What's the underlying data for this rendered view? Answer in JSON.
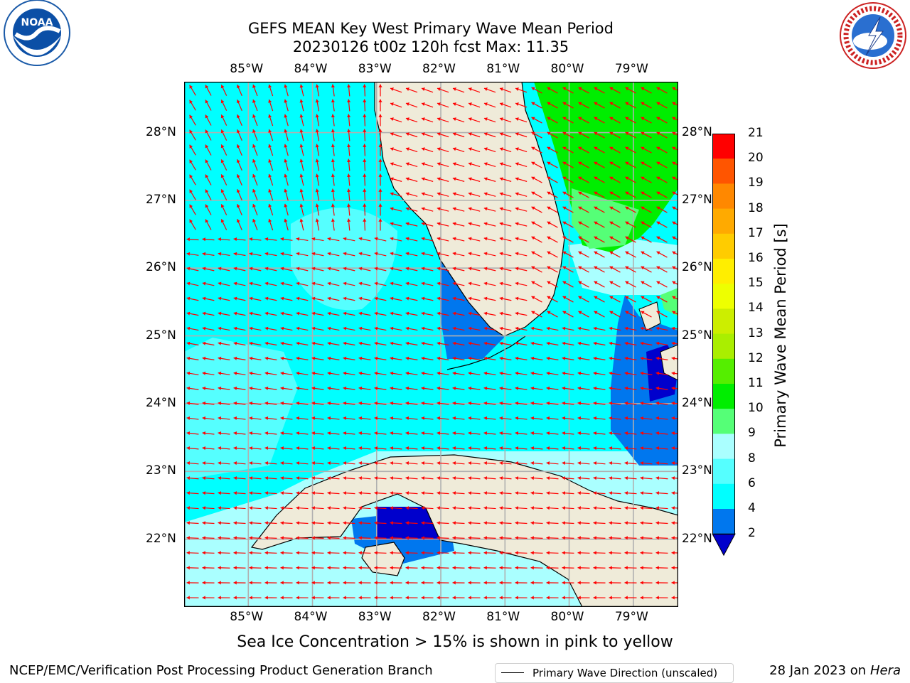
{
  "title": {
    "line1": "GEFS MEAN Key West Primary Wave Mean Period",
    "line2": "20230126 t00z 120h fcst   Max: 11.35"
  },
  "map": {
    "lon_labels": [
      "85°W",
      "84°W",
      "83°W",
      "82°W",
      "81°W",
      "80°W",
      "79°W"
    ],
    "lat_labels": [
      "28°N",
      "27°N",
      "26°N",
      "25°N",
      "24°N",
      "23°N",
      "22°N"
    ],
    "lon_range": [
      -86.0,
      -78.3
    ],
    "lat_range": [
      21.0,
      28.75
    ],
    "land_color": "#efebd9",
    "grid": true,
    "vector_color": "#ff0000"
  },
  "colorbar": {
    "title": "Primary Wave Mean Period [s]",
    "levels": [
      "2",
      "4",
      "6",
      "8",
      "9",
      "10",
      "11",
      "12",
      "13",
      "14",
      "15",
      "16",
      "17",
      "18",
      "19",
      "20",
      "21"
    ],
    "colors": [
      "#0000cc",
      "#0077ee",
      "#00ffff",
      "#55ffff",
      "#aaffff",
      "#55ff77",
      "#00ee00",
      "#55ee00",
      "#aaee00",
      "#ccee00",
      "#eeff00",
      "#ffee00",
      "#ffcc00",
      "#ffaa00",
      "#ff8800",
      "#ff5500",
      "#ff0000"
    ]
  },
  "legend": {
    "label": "Primary Wave Direction (unscaled)"
  },
  "notes": {
    "sea_ice": "Sea Ice Concentration > 15% is shown in pink to yellow"
  },
  "footer": {
    "left": "NCEP/EMC/Verification Post Processing Product Generation Branch",
    "date": "28 Jan 2023 on ",
    "host": "Hera"
  },
  "logos": {
    "noaa": "NOAA",
    "nws": "NATIONAL WEATHER SERVICE"
  }
}
